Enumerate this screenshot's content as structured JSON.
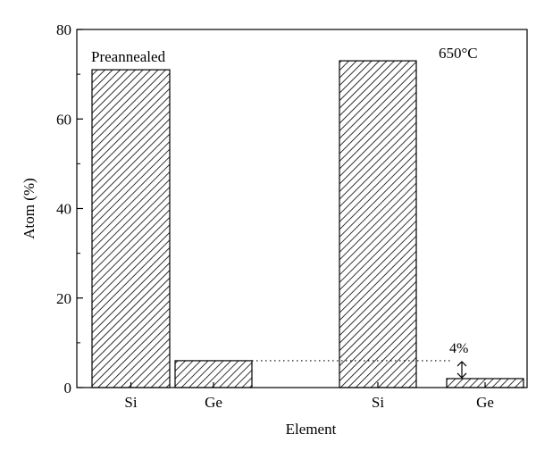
{
  "chart_data": {
    "type": "bar",
    "xlabel": "Element",
    "ylabel": "Atom (%)",
    "ylim": [
      0,
      80
    ],
    "yticks": [
      0,
      20,
      40,
      60,
      80
    ],
    "grid": false,
    "bar_pattern": "diagonal-hatch",
    "groups": [
      {
        "label": "Preannealed",
        "bars": [
          {
            "category": "Si",
            "value": 71
          },
          {
            "category": "Ge",
            "value": 6
          }
        ]
      },
      {
        "label": "650°C",
        "bars": [
          {
            "category": "Si",
            "value": 73
          },
          {
            "category": "Ge",
            "value": 2
          }
        ]
      }
    ],
    "annotation": {
      "text": "4%",
      "from_value": 6,
      "to_value": 2
    }
  }
}
